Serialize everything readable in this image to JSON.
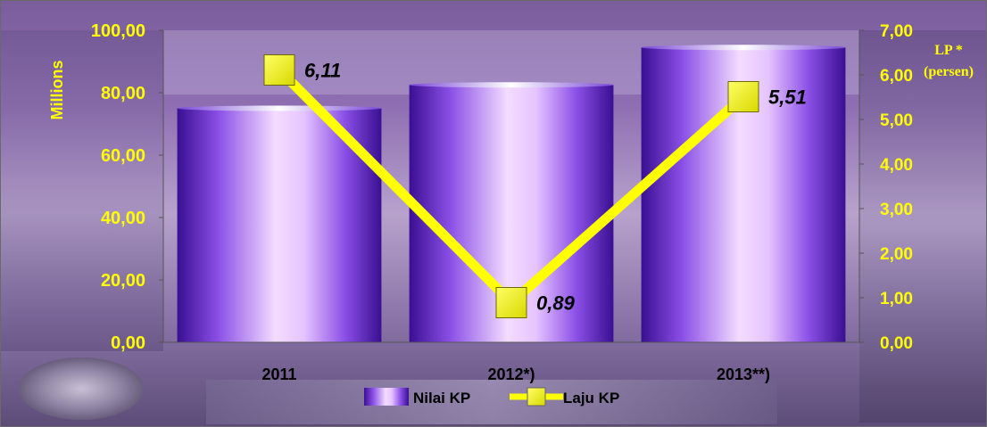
{
  "chart_data": {
    "type": "bar",
    "categories": [
      "2011",
      "2012*)",
      "2013**)"
    ],
    "series": [
      {
        "name": "Nilai KP",
        "type": "bar",
        "axis": "left",
        "values": [
          75.0,
          82.5,
          94.5
        ]
      },
      {
        "name": "Laju KP",
        "type": "line",
        "axis": "right",
        "values": [
          6.11,
          0.89,
          5.51
        ],
        "labels": [
          "6,11",
          "0,89",
          "5,51"
        ]
      }
    ],
    "ylabel": "Millions",
    "ylim": [
      0,
      100
    ],
    "yticks": [
      "0,00",
      "20,00",
      "40,00",
      "60,00",
      "80,00",
      "100,00"
    ],
    "y2label_line1": "LP *",
    "y2label_line2": "(persen)",
    "y2lim": [
      0,
      7
    ],
    "y2ticks": [
      "0,00",
      "1,00",
      "2,00",
      "3,00",
      "4,00",
      "5,00",
      "6,00",
      "7,00"
    ],
    "legend_position": "bottom",
    "grid": false,
    "colors": {
      "bar_dark": "#4a16a8",
      "bar_mid": "#9b5ff0",
      "bar_light": "#f2d6ff",
      "line": "#ffff00",
      "marker": "#f4f400",
      "tick_text": "#ffff00",
      "category_text": "#000000"
    }
  }
}
